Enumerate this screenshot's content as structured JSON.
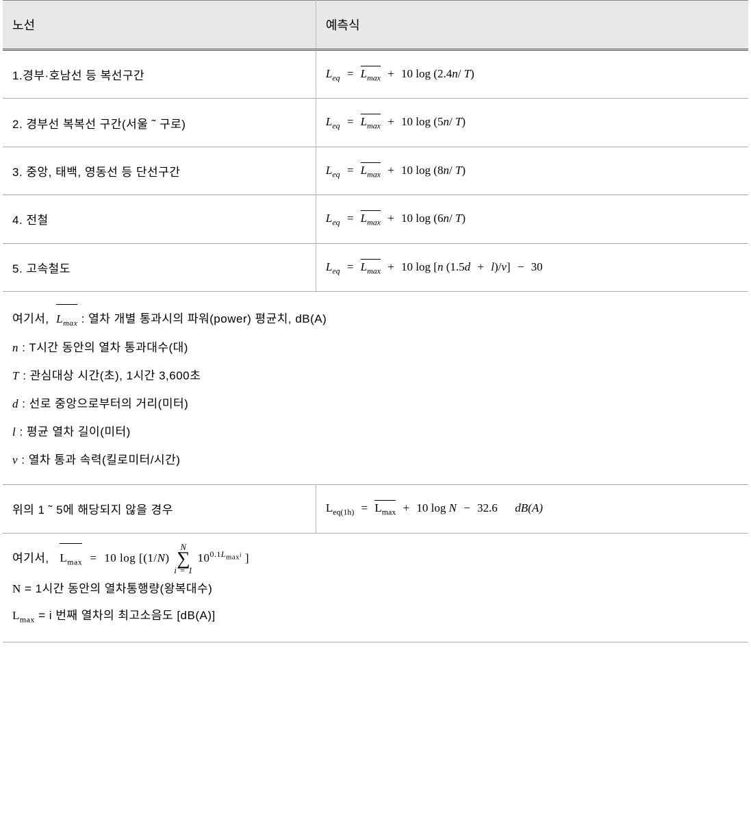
{
  "header": {
    "col1": "노선",
    "col2": "예측식"
  },
  "rows": [
    {
      "label": "1.경부·호남선 등 복선구간",
      "coef": "2.4",
      "form": "basic"
    },
    {
      "label": "2. 경부선 복복선 구간(서울 ˜ 구로)",
      "coef": "5",
      "form": "basic"
    },
    {
      "label": "3. 중앙, 태백, 영동선 등 단선구간",
      "coef": "8",
      "form": "basic"
    },
    {
      "label": "4. 전철",
      "coef": "6",
      "form": "basic"
    },
    {
      "label": "5. 고속철도",
      "coef": "",
      "form": "highspeed",
      "tail_const": "30"
    }
  ],
  "notes1": {
    "lead": "여기서,",
    "lmax_desc": "  : 열차 개별 통과시의 파워(power) 평균치, dB(A)",
    "n": "T시간 동안의 열차 통과대수(대)",
    "T": "관심대상 시간(초), 1시간 3,600초",
    "d": "선로 중앙으로부터의 거리(미터)",
    "l": "평균 열차 길이(미터)",
    "v": "열차 통과 속력(킬로미터/시간)"
  },
  "row2": {
    "label": "위의 1 ˜ 5에 해당되지 않을 경우",
    "const": "32.6",
    "unit": "dB(A)"
  },
  "notes2": {
    "lead": "여기서,",
    "N_top": "N",
    "i_bot": "i = 1",
    "exp_prefix": "0.1",
    "N_desc": "1시간 동안의 열차통행량(왕복대수)",
    "Lmax_desc": "i 번째 열차의 최고소음도 [dB(A)]"
  },
  "math": {
    "Leq": "L",
    "eq_sub": "eq",
    "Lmax": "L",
    "max_sub": "max",
    "tenlog": "10 log",
    "n": "n",
    "T": "T",
    "d": "d",
    "l": "l",
    "v": "v",
    "N": "N",
    "one_over_N": "(1/",
    "one_over_N_close": ")",
    "ten": "10",
    "Leq1h_sub": "eq(1h)",
    "Lmaxi_sub": "max",
    "i_sub": "i"
  }
}
